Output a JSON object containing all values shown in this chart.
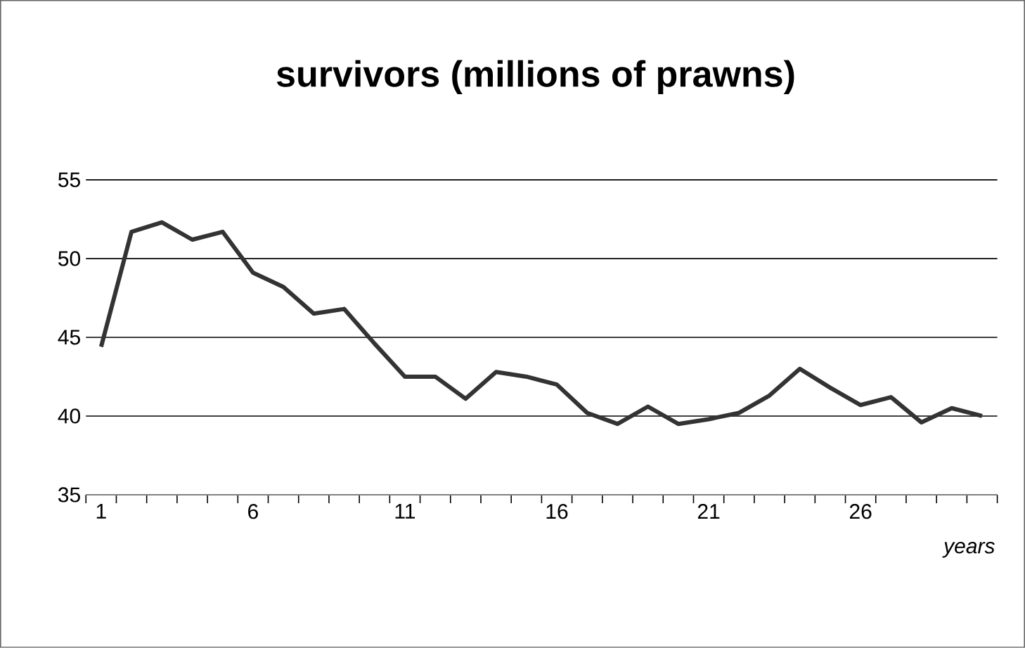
{
  "chart_data": {
    "type": "line",
    "title": "survivors (millions of prawns)",
    "xlabel": "years",
    "categories": [
      "1",
      null,
      null,
      null,
      null,
      "6",
      null,
      null,
      null,
      null,
      "11",
      null,
      null,
      null,
      null,
      "16",
      null,
      null,
      null,
      null,
      "21",
      null,
      null,
      null,
      null,
      "26",
      null,
      null,
      null,
      null
    ],
    "series": [
      {
        "color": "#333333",
        "values": [
          44.4,
          51.7,
          52.3,
          51.2,
          51.7,
          49.1,
          48.2,
          46.5,
          46.8,
          44.6,
          42.5,
          42.5,
          41.1,
          42.8,
          42.5,
          42.0,
          40.2,
          39.5,
          40.6,
          39.5,
          39.8,
          40.2,
          41.3,
          43.0,
          41.8,
          40.7,
          41.2,
          39.6,
          40.5,
          40.0
        ]
      }
    ],
    "ylim": [
      35,
      55
    ],
    "yticks": [
      35,
      40,
      45,
      50,
      55
    ],
    "grid": "y",
    "marker": "none",
    "line_style": "solid"
  }
}
